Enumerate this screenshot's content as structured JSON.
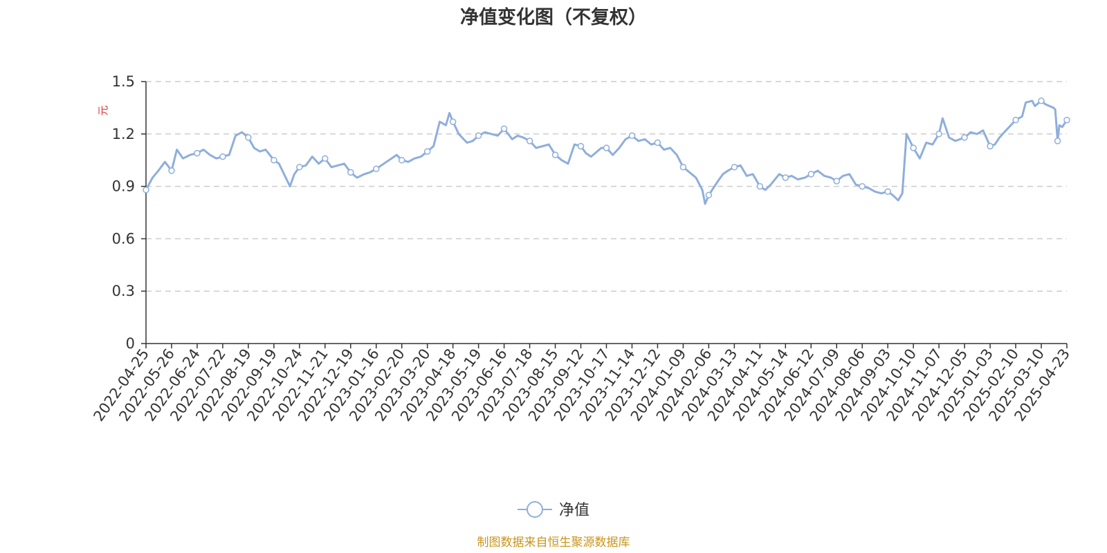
{
  "chart_data": {
    "type": "line",
    "title": "净值变化图（不复权）",
    "ylabel": "元",
    "ylim": [
      0,
      1.5
    ],
    "yticks": [
      "0",
      "0.3",
      "0.6",
      "0.9",
      "1.2",
      "1.5"
    ],
    "grid": "horizontal-dashed",
    "legend_position": "bottom-center",
    "x_tick_labels": [
      "2022-04-25",
      "2022-05-26",
      "2022-06-24",
      "2022-07-22",
      "2022-08-19",
      "2022-09-19",
      "2022-10-24",
      "2022-11-21",
      "2022-12-19",
      "2023-01-16",
      "2023-02-20",
      "2023-03-20",
      "2023-04-18",
      "2023-05-19",
      "2023-06-16",
      "2023-07-18",
      "2023-08-15",
      "2023-09-12",
      "2023-10-17",
      "2023-11-14",
      "2023-12-12",
      "2024-01-09",
      "2024-02-06",
      "2024-03-13",
      "2024-04-11",
      "2024-05-14",
      "2024-06-12",
      "2024-07-09",
      "2024-08-06",
      "2024-09-03",
      "2024-10-10",
      "2024-11-07",
      "2024-12-05",
      "2025-01-03",
      "2025-02-10",
      "2025-03-10",
      "2025-04-23"
    ],
    "series": [
      {
        "name": "净值",
        "color": "#8eaedc",
        "points": [
          [
            "2022-04-25",
            0.88
          ],
          [
            "2022-05-03",
            0.95
          ],
          [
            "2022-05-10",
            0.99
          ],
          [
            "2022-05-18",
            1.04
          ],
          [
            "2022-05-26",
            0.99
          ],
          [
            "2022-06-01",
            1.11
          ],
          [
            "2022-06-08",
            1.06
          ],
          [
            "2022-06-16",
            1.08
          ],
          [
            "2022-06-24",
            1.09
          ],
          [
            "2022-07-01",
            1.11
          ],
          [
            "2022-07-08",
            1.08
          ],
          [
            "2022-07-15",
            1.06
          ],
          [
            "2022-07-22",
            1.07
          ],
          [
            "2022-07-29",
            1.08
          ],
          [
            "2022-08-05",
            1.19
          ],
          [
            "2022-08-12",
            1.21
          ],
          [
            "2022-08-19",
            1.18
          ],
          [
            "2022-08-26",
            1.12
          ],
          [
            "2022-09-02",
            1.1
          ],
          [
            "2022-09-09",
            1.11
          ],
          [
            "2022-09-19",
            1.05
          ],
          [
            "2022-09-26",
            1.03
          ],
          [
            "2022-10-11",
            0.9
          ],
          [
            "2022-10-17",
            0.97
          ],
          [
            "2022-10-24",
            1.01
          ],
          [
            "2022-10-31",
            1.02
          ],
          [
            "2022-11-07",
            1.07
          ],
          [
            "2022-11-14",
            1.03
          ],
          [
            "2022-11-21",
            1.06
          ],
          [
            "2022-11-28",
            1.01
          ],
          [
            "2022-12-05",
            1.02
          ],
          [
            "2022-12-12",
            1.03
          ],
          [
            "2022-12-19",
            0.98
          ],
          [
            "2022-12-26",
            0.95
          ],
          [
            "2023-01-03",
            0.97
          ],
          [
            "2023-01-09",
            0.98
          ],
          [
            "2023-01-16",
            1.0
          ],
          [
            "2023-01-30",
            1.04
          ],
          [
            "2023-02-06",
            1.06
          ],
          [
            "2023-02-13",
            1.08
          ],
          [
            "2023-02-20",
            1.05
          ],
          [
            "2023-02-27",
            1.04
          ],
          [
            "2023-03-06",
            1.06
          ],
          [
            "2023-03-13",
            1.07
          ],
          [
            "2023-03-20",
            1.1
          ],
          [
            "2023-03-27",
            1.13
          ],
          [
            "2023-04-03",
            1.27
          ],
          [
            "2023-04-10",
            1.25
          ],
          [
            "2023-04-14",
            1.32
          ],
          [
            "2023-04-18",
            1.27
          ],
          [
            "2023-04-25",
            1.2
          ],
          [
            "2023-05-05",
            1.15
          ],
          [
            "2023-05-12",
            1.16
          ],
          [
            "2023-05-19",
            1.19
          ],
          [
            "2023-05-26",
            1.21
          ],
          [
            "2023-06-02",
            1.2
          ],
          [
            "2023-06-09",
            1.19
          ],
          [
            "2023-06-16",
            1.23
          ],
          [
            "2023-06-26",
            1.17
          ],
          [
            "2023-07-03",
            1.19
          ],
          [
            "2023-07-10",
            1.18
          ],
          [
            "2023-07-18",
            1.16
          ],
          [
            "2023-07-25",
            1.12
          ],
          [
            "2023-08-01",
            1.13
          ],
          [
            "2023-08-08",
            1.14
          ],
          [
            "2023-08-15",
            1.08
          ],
          [
            "2023-08-22",
            1.05
          ],
          [
            "2023-08-29",
            1.03
          ],
          [
            "2023-09-05",
            1.14
          ],
          [
            "2023-09-12",
            1.13
          ],
          [
            "2023-09-19",
            1.09
          ],
          [
            "2023-09-26",
            1.07
          ],
          [
            "2023-10-10",
            1.12
          ],
          [
            "2023-10-17",
            1.12
          ],
          [
            "2023-10-24",
            1.08
          ],
          [
            "2023-10-31",
            1.12
          ],
          [
            "2023-11-07",
            1.17
          ],
          [
            "2023-11-14",
            1.19
          ],
          [
            "2023-11-21",
            1.16
          ],
          [
            "2023-11-28",
            1.17
          ],
          [
            "2023-12-05",
            1.14
          ],
          [
            "2023-12-12",
            1.15
          ],
          [
            "2023-12-19",
            1.11
          ],
          [
            "2023-12-26",
            1.12
          ],
          [
            "2024-01-02",
            1.08
          ],
          [
            "2024-01-09",
            1.01
          ],
          [
            "2024-01-16",
            0.98
          ],
          [
            "2024-01-23",
            0.95
          ],
          [
            "2024-01-30",
            0.88
          ],
          [
            "2024-02-02",
            0.8
          ],
          [
            "2024-02-06",
            0.85
          ],
          [
            "2024-02-19",
            0.93
          ],
          [
            "2024-02-26",
            0.97
          ],
          [
            "2024-03-04",
            0.99
          ],
          [
            "2024-03-13",
            1.01
          ],
          [
            "2024-03-20",
            1.02
          ],
          [
            "2024-03-27",
            0.96
          ],
          [
            "2024-04-03",
            0.97
          ],
          [
            "2024-04-11",
            0.9
          ],
          [
            "2024-04-18",
            0.88
          ],
          [
            "2024-04-25",
            0.91
          ],
          [
            "2024-05-06",
            0.97
          ],
          [
            "2024-05-14",
            0.95
          ],
          [
            "2024-05-21",
            0.96
          ],
          [
            "2024-05-28",
            0.94
          ],
          [
            "2024-06-05",
            0.95
          ],
          [
            "2024-06-12",
            0.97
          ],
          [
            "2024-06-19",
            0.99
          ],
          [
            "2024-06-26",
            0.96
          ],
          [
            "2024-07-03",
            0.95
          ],
          [
            "2024-07-09",
            0.93
          ],
          [
            "2024-07-16",
            0.96
          ],
          [
            "2024-07-23",
            0.97
          ],
          [
            "2024-07-30",
            0.91
          ],
          [
            "2024-08-06",
            0.9
          ],
          [
            "2024-08-13",
            0.89
          ],
          [
            "2024-08-20",
            0.87
          ],
          [
            "2024-08-27",
            0.86
          ],
          [
            "2024-09-03",
            0.87
          ],
          [
            "2024-09-10",
            0.85
          ],
          [
            "2024-09-18",
            0.82
          ],
          [
            "2024-09-24",
            0.86
          ],
          [
            "2024-09-30",
            1.2
          ],
          [
            "2024-10-10",
            1.12
          ],
          [
            "2024-10-17",
            1.06
          ],
          [
            "2024-10-24",
            1.15
          ],
          [
            "2024-10-31",
            1.14
          ],
          [
            "2024-11-07",
            1.2
          ],
          [
            "2024-11-11",
            1.29
          ],
          [
            "2024-11-18",
            1.18
          ],
          [
            "2024-11-25",
            1.16
          ],
          [
            "2024-12-05",
            1.18
          ],
          [
            "2024-12-12",
            1.21
          ],
          [
            "2024-12-19",
            1.2
          ],
          [
            "2024-12-26",
            1.22
          ],
          [
            "2025-01-03",
            1.13
          ],
          [
            "2025-01-10",
            1.14
          ],
          [
            "2025-01-17",
            1.18
          ],
          [
            "2025-01-24",
            1.21
          ],
          [
            "2025-02-10",
            1.28
          ],
          [
            "2025-02-17",
            1.3
          ],
          [
            "2025-02-21",
            1.38
          ],
          [
            "2025-02-28",
            1.39
          ],
          [
            "2025-03-03",
            1.36
          ],
          [
            "2025-03-10",
            1.39
          ],
          [
            "2025-03-17",
            1.37
          ],
          [
            "2025-03-24",
            1.36
          ],
          [
            "2025-03-31",
            1.35
          ],
          [
            "2025-04-03",
            1.34
          ],
          [
            "2025-04-07",
            1.16
          ],
          [
            "2025-04-10",
            1.25
          ],
          [
            "2025-04-15",
            1.24
          ],
          [
            "2025-04-23",
            1.28
          ]
        ],
        "markers": [
          "2022-04-25",
          "2022-05-26",
          "2022-06-24",
          "2022-07-22",
          "2022-08-19",
          "2022-09-19",
          "2022-10-24",
          "2022-11-21",
          "2022-12-19",
          "2023-01-16",
          "2023-02-20",
          "2023-03-20",
          "2023-04-18",
          "2023-05-19",
          "2023-06-16",
          "2023-07-18",
          "2023-08-15",
          "2023-09-12",
          "2023-10-17",
          "2023-11-14",
          "2023-12-12",
          "2024-01-09",
          "2024-02-06",
          "2024-03-13",
          "2024-04-11",
          "2024-05-14",
          "2024-06-12",
          "2024-07-09",
          "2024-08-06",
          "2024-09-03",
          "2024-10-10",
          "2024-11-07",
          "2024-12-05",
          "2025-01-03",
          "2025-02-10",
          "2025-03-10",
          "2025-04-07",
          "2025-04-23"
        ]
      }
    ]
  },
  "colors": {
    "line": "#8eaedc",
    "axis": "#333333",
    "grid": "#cccccc",
    "ylabel": "#e03030",
    "source": "#c8951e"
  },
  "footer": {
    "source_note": "制图数据来自恒生聚源数据库"
  }
}
